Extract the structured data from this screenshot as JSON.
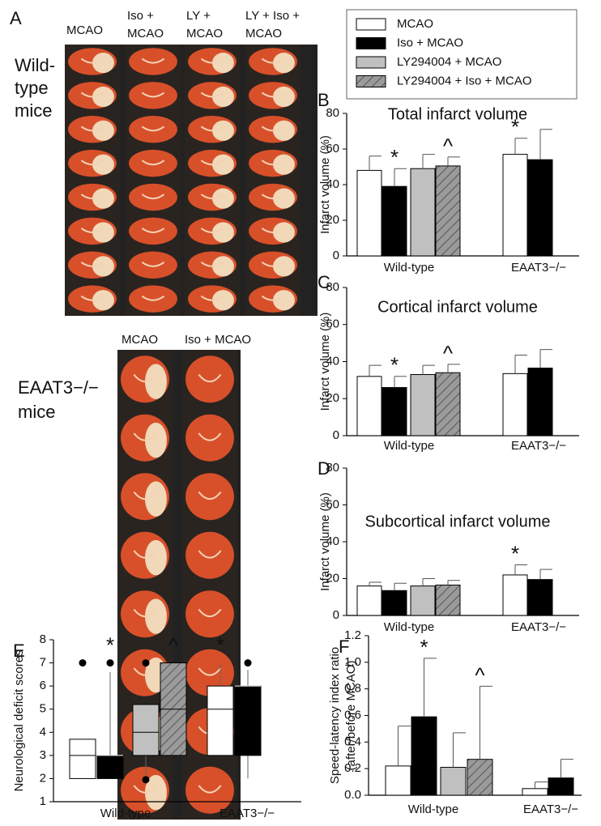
{
  "panel_a": {
    "label": "A",
    "wild_type": {
      "label": [
        "Wild-",
        "type",
        "mice"
      ],
      "columns": [
        [
          "MCAO"
        ],
        [
          "Iso +",
          "MCAO"
        ],
        [
          "LY +",
          "MCAO"
        ],
        [
          "LY + Iso +",
          "MCAO"
        ]
      ]
    },
    "eaat3": {
      "label": [
        "EAAT3−/−",
        "mice"
      ],
      "columns": [
        [
          "MCAO"
        ],
        [
          "Iso + MCAO"
        ]
      ]
    }
  },
  "chart_data": [
    {
      "type": "bar",
      "panel": "B",
      "title": "Total infarct volume",
      "ylabel": [
        "Infarct volume (%)"
      ],
      "categories": [
        "Wild-type",
        "EAAT3−/−"
      ],
      "ylim": [
        0,
        80
      ],
      "yticks": [
        0,
        20,
        40,
        60,
        80
      ],
      "legend": "top",
      "series": [
        {
          "name": "MCAO",
          "color": "#ffffff",
          "values": [
            48,
            57
          ],
          "errors": [
            8,
            9
          ],
          "marks": [
            null,
            "*"
          ]
        },
        {
          "name": "Iso + MCAO",
          "color": "#000000",
          "values": [
            39,
            54
          ],
          "errors": [
            10,
            17
          ],
          "marks": [
            "*",
            null
          ]
        },
        {
          "name": "LY294004 + MCAO",
          "color": "#c0c0c0",
          "values": [
            49,
            null
          ],
          "errors": [
            8,
            null
          ],
          "marks": [
            null,
            null
          ]
        },
        {
          "name": "LY294004 + Iso + MCAO",
          "color": "#9a9a9a",
          "hatch": true,
          "values": [
            50.5,
            null
          ],
          "errors": [
            5,
            null
          ],
          "marks": [
            "^",
            null
          ]
        }
      ]
    },
    {
      "type": "bar",
      "panel": "C",
      "title": "Cortical infarct volume",
      "ylabel": [
        "Infarct volume (%)"
      ],
      "categories": [
        "Wild-type",
        "EAAT3−/−"
      ],
      "ylim": [
        0,
        80
      ],
      "yticks": [
        0,
        20,
        40,
        60,
        80
      ],
      "series": [
        {
          "color": "#ffffff",
          "values": [
            32,
            33.5
          ],
          "errors": [
            6,
            10
          ],
          "marks": [
            null,
            null
          ]
        },
        {
          "color": "#000000",
          "values": [
            26,
            36.5
          ],
          "errors": [
            6,
            10
          ],
          "marks": [
            "*",
            null
          ]
        },
        {
          "color": "#c0c0c0",
          "values": [
            33,
            null
          ],
          "errors": [
            5,
            null
          ],
          "marks": [
            null,
            null
          ]
        },
        {
          "color": "#9a9a9a",
          "hatch": true,
          "values": [
            34,
            null
          ],
          "errors": [
            4.5,
            null
          ],
          "marks": [
            "^",
            null
          ]
        }
      ]
    },
    {
      "type": "bar",
      "panel": "D",
      "title": "Subcortical infarct volume",
      "ylabel": [
        "Infarct volume (%)"
      ],
      "categories": [
        "Wild-type",
        "EAAT3−/−"
      ],
      "ylim": [
        0,
        80
      ],
      "yticks": [
        0,
        20,
        40,
        60,
        80
      ],
      "series": [
        {
          "color": "#ffffff",
          "values": [
            16,
            22
          ],
          "errors": [
            2,
            5.5
          ],
          "marks": [
            null,
            "*"
          ]
        },
        {
          "color": "#000000",
          "values": [
            13.5,
            19.5
          ],
          "errors": [
            4,
            5.5
          ],
          "marks": [
            null,
            null
          ]
        },
        {
          "color": "#c0c0c0",
          "values": [
            16,
            null
          ],
          "errors": [
            4,
            null
          ],
          "marks": [
            null,
            null
          ]
        },
        {
          "color": "#9a9a9a",
          "hatch": true,
          "values": [
            16.5,
            null
          ],
          "errors": [
            2.5,
            null
          ],
          "marks": [
            null,
            null
          ]
        }
      ]
    },
    {
      "type": "box",
      "panel": "E",
      "ylabel": [
        "Neurological deficit scores"
      ],
      "categories": [
        "Wild-type",
        "EAAT3−/−"
      ],
      "ylim": [
        1,
        8
      ],
      "yticks": [
        1,
        2,
        3,
        4,
        5,
        6,
        7,
        8
      ],
      "series": [
        {
          "color": "#ffffff",
          "whisker_low": [
            2,
            3
          ],
          "q1": [
            2,
            3
          ],
          "median": [
            3,
            5
          ],
          "q3": [
            3.7,
            6
          ],
          "whisker_high": [
            3.7,
            7
          ],
          "outliers": [
            [
              7
            ],
            []
          ],
          "marks": [
            null,
            "*"
          ]
        },
        {
          "color": "#000000",
          "whisker_low": [
            2,
            2
          ],
          "q1": [
            2,
            3
          ],
          "median": [
            3,
            6
          ],
          "q3": [
            3,
            6
          ],
          "whisker_high": [
            6.6,
            6.7
          ],
          "outliers": [
            [
              7
            ],
            [
              7
            ]
          ],
          "marks": [
            "*",
            null
          ]
        },
        {
          "color": "#c0c0c0",
          "whisker_low": [
            2,
            null
          ],
          "q1": [
            3,
            null
          ],
          "median": [
            4,
            null
          ],
          "q3": [
            5.2,
            null
          ],
          "whisker_high": [
            5.2,
            null
          ],
          "outliers": [
            [
              7,
              1.95
            ],
            []
          ],
          "marks": [
            null,
            null
          ]
        },
        {
          "color": "#9a9a9a",
          "hatch": true,
          "whisker_low": [
            3,
            null
          ],
          "q1": [
            3,
            null
          ],
          "median": [
            5,
            null
          ],
          "q3": [
            7,
            null
          ],
          "whisker_high": [
            7,
            null
          ],
          "outliers": [
            [],
            []
          ],
          "marks": [
            "^",
            null
          ]
        }
      ]
    },
    {
      "type": "bar",
      "panel": "F",
      "ylabel": [
        "Speed-latency index ratio",
        "(after/before MCAO)"
      ],
      "categories": [
        "Wild-type",
        "EAAT3−/−"
      ],
      "ylim": [
        0,
        1.2
      ],
      "yticks": [
        {
          "value": 0,
          "label": "0.0"
        },
        0.2,
        0.4,
        0.6,
        0.8,
        {
          "value": 1,
          "label": "1.0"
        },
        1.2
      ],
      "series": [
        {
          "color": "#ffffff",
          "values": [
            0.22,
            0.05
          ],
          "errors": [
            0.3,
            0.05
          ],
          "marks": [
            null,
            null
          ]
        },
        {
          "color": "#000000",
          "values": [
            0.59,
            0.13
          ],
          "errors": [
            0.44,
            0.14
          ],
          "marks": [
            "*",
            null
          ]
        },
        {
          "color": "#c0c0c0",
          "values": [
            0.21,
            null
          ],
          "errors": [
            0.26,
            null
          ],
          "marks": [
            null,
            null
          ]
        },
        {
          "color": "#9a9a9a",
          "hatch": true,
          "values": [
            0.27,
            null
          ],
          "errors": [
            0.55,
            null
          ],
          "marks": [
            "^",
            null
          ]
        }
      ]
    }
  ]
}
